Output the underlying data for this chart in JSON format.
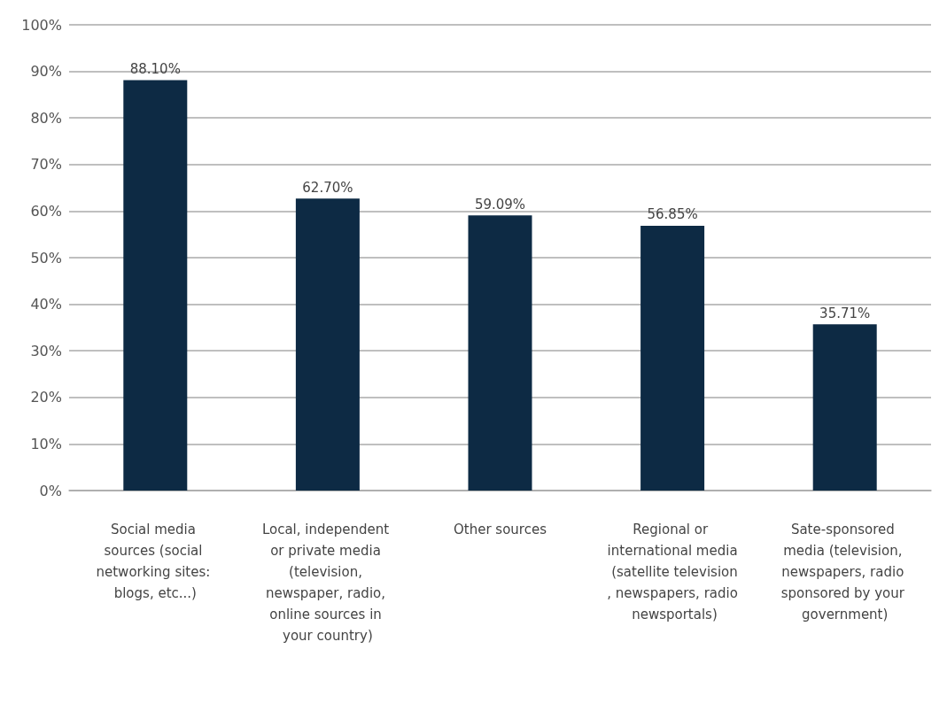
{
  "chart_data": {
    "type": "bar",
    "categories": [
      "Social media sources (social networking sites: blogs, etc...)",
      "Local, independent or private media (television, newspaper, radio, online sources in your country)",
      "Other sources",
      "Regional or international media (satellite television, newspapers, radio newsportals)",
      "Sate-sponsored media (television, newspapers, radio sponsored by your government)"
    ],
    "values": [
      88.1,
      62.7,
      59.09,
      56.85,
      35.71
    ],
    "value_labels": [
      "88.10%",
      "62.70%",
      "59.09%",
      "56.85%",
      "35.71%"
    ],
    "color": "#0d2a44",
    "ylim": [
      0,
      100
    ],
    "yticks": [
      {
        "value": 0,
        "label": "0%"
      },
      {
        "value": 10,
        "label": "10%"
      },
      {
        "value": 20,
        "label": "20%"
      },
      {
        "value": 30,
        "label": "30%"
      },
      {
        "value": 40,
        "label": "40%"
      },
      {
        "value": 50,
        "label": "50%"
      },
      {
        "value": 60,
        "label": "60%"
      },
      {
        "value": 70,
        "label": "70%"
      },
      {
        "value": 80,
        "label": "80%"
      },
      {
        "value": 90,
        "label": "90%"
      },
      {
        "value": 100,
        "label": "100%"
      }
    ],
    "grid": "y"
  }
}
